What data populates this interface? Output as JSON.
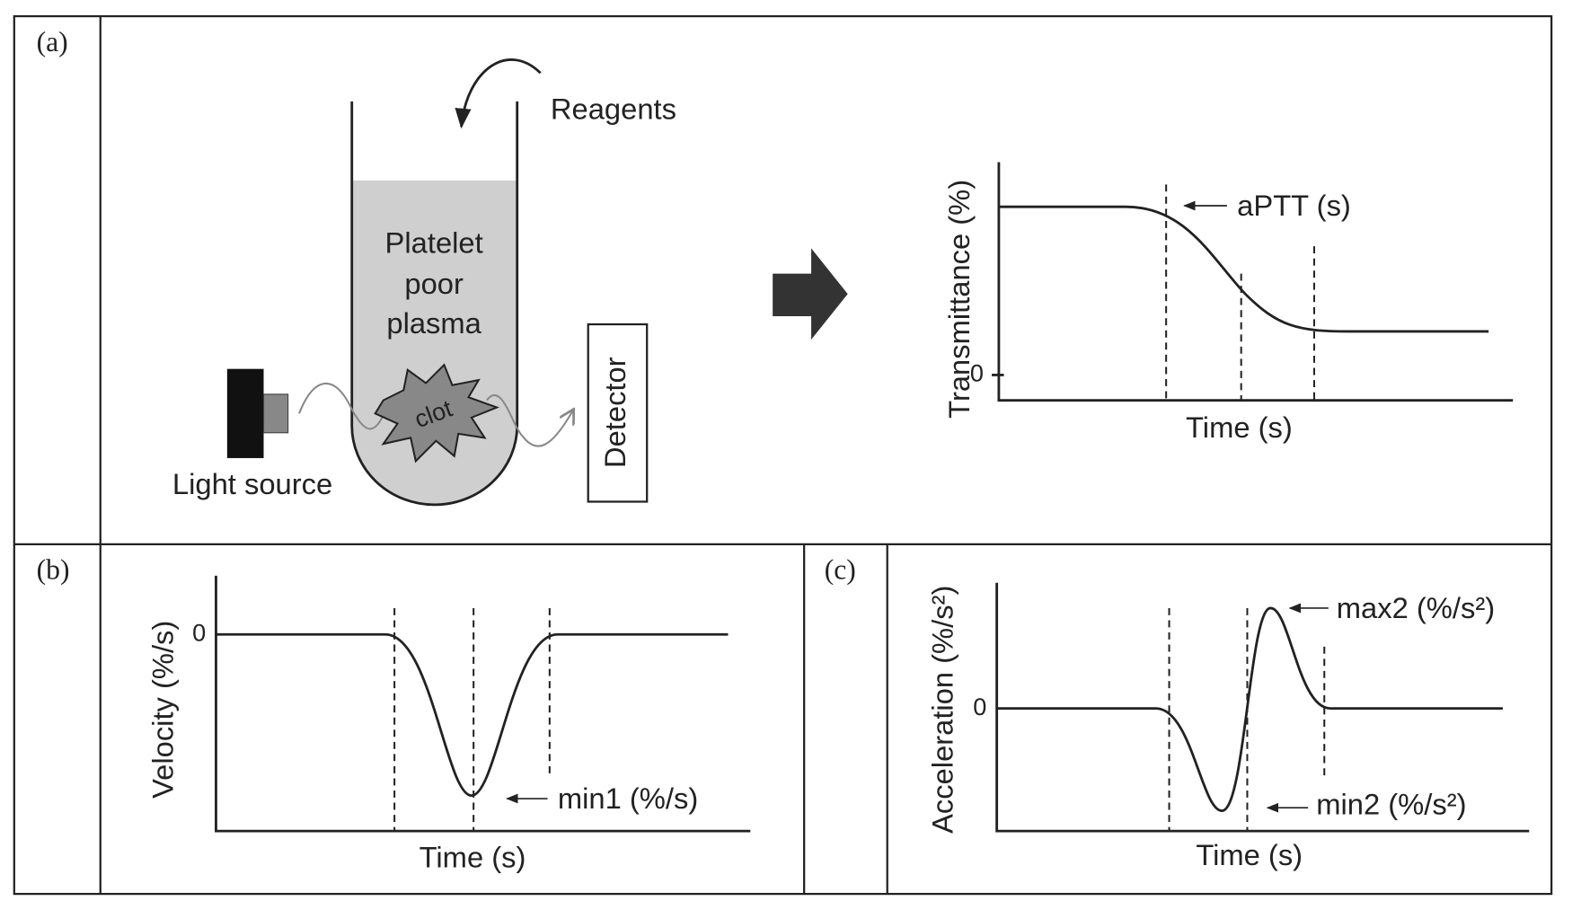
{
  "panels": [
    {
      "label": "(a)",
      "setup": {
        "reagents": "Reagents",
        "sample": [
          "Platelet",
          "poor",
          "plasma"
        ],
        "clot": "clot",
        "light_source": "Light source",
        "detector": "Detector"
      },
      "plot": {
        "y_label": "Transmittance (%)",
        "x_label": "Time (s)",
        "zero": "0",
        "annotation": "aPTT (s)"
      }
    },
    {
      "label": "(b)",
      "plot": {
        "y_label": "Velocity (%/s)",
        "x_label": "Time (s)",
        "zero": "0",
        "annotation": "min1 (%/s)"
      }
    },
    {
      "label": "(c)",
      "plot": {
        "y_label": "Acceleration (%/s²)",
        "x_label": "Time (s)",
        "zero": "0",
        "annotations": [
          "max2 (%/s²)",
          "min2 (%/s²)"
        ]
      }
    }
  ]
}
